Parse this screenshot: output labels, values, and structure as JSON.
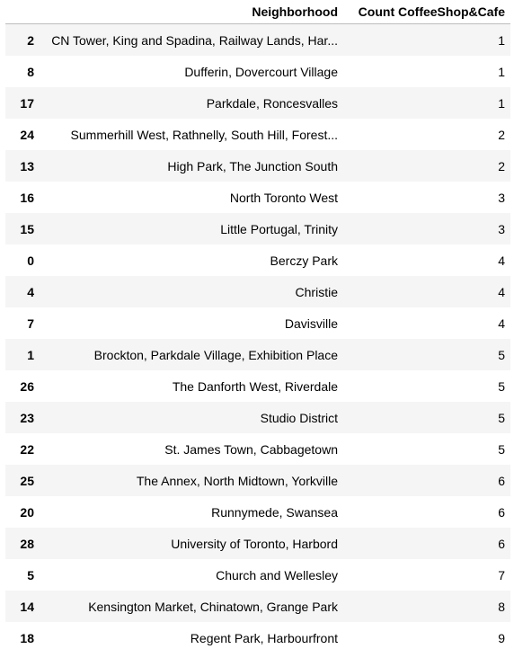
{
  "table": {
    "columns": [
      "",
      "Neighborhood",
      "Count CoffeeShop&Cafe"
    ],
    "rows": [
      {
        "index": "2",
        "neighborhood": "CN Tower, King and Spadina, Railway Lands, Har...",
        "count": "1"
      },
      {
        "index": "8",
        "neighborhood": "Dufferin, Dovercourt Village",
        "count": "1"
      },
      {
        "index": "17",
        "neighborhood": "Parkdale, Roncesvalles",
        "count": "1"
      },
      {
        "index": "24",
        "neighborhood": "Summerhill West, Rathnelly, South Hill, Forest...",
        "count": "2"
      },
      {
        "index": "13",
        "neighborhood": "High Park, The Junction South",
        "count": "2"
      },
      {
        "index": "16",
        "neighborhood": "North Toronto West",
        "count": "3"
      },
      {
        "index": "15",
        "neighborhood": "Little Portugal, Trinity",
        "count": "3"
      },
      {
        "index": "0",
        "neighborhood": "Berczy Park",
        "count": "4"
      },
      {
        "index": "4",
        "neighborhood": "Christie",
        "count": "4"
      },
      {
        "index": "7",
        "neighborhood": "Davisville",
        "count": "4"
      },
      {
        "index": "1",
        "neighborhood": "Brockton, Parkdale Village, Exhibition Place",
        "count": "5"
      },
      {
        "index": "26",
        "neighborhood": "The Danforth West, Riverdale",
        "count": "5"
      },
      {
        "index": "23",
        "neighborhood": "Studio District",
        "count": "5"
      },
      {
        "index": "22",
        "neighborhood": "St. James Town, Cabbagetown",
        "count": "5"
      },
      {
        "index": "25",
        "neighborhood": "The Annex, North Midtown, Yorkville",
        "count": "6"
      },
      {
        "index": "20",
        "neighborhood": "Runnymede, Swansea",
        "count": "6"
      },
      {
        "index": "28",
        "neighborhood": "University of Toronto, Harbord",
        "count": "6"
      },
      {
        "index": "5",
        "neighborhood": "Church and Wellesley",
        "count": "7"
      },
      {
        "index": "14",
        "neighborhood": "Kensington Market, Chinatown, Grange Park",
        "count": "8"
      },
      {
        "index": "18",
        "neighborhood": "Regent Park, Harbourfront",
        "count": "9"
      }
    ]
  }
}
